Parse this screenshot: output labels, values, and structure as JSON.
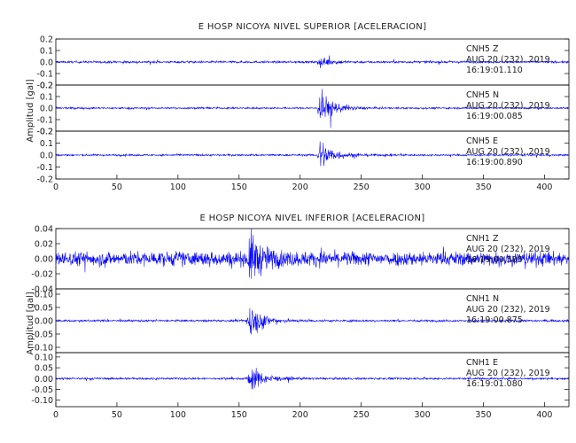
{
  "colors": {
    "trace": "#0000ff",
    "axis": "#000000",
    "text": "#222222"
  },
  "chart_data": [
    {
      "type": "line",
      "title": "E HOSP NICOYA NIVEL SUPERIOR [ACELERACION]",
      "ylabel": "Amplitud [gal]",
      "xlim": [
        0,
        420
      ],
      "x_ticks": [
        "0",
        "50",
        "100",
        "150",
        "200",
        "250",
        "300",
        "350",
        "400"
      ],
      "panels": [
        {
          "channel": "CNH5 Z",
          "date": "AUG 20 (232), 2019",
          "time": "16:19:01.110",
          "ylim": [
            -0.2,
            0.2
          ],
          "y_ticks": [
            "0.2",
            "0.1",
            "0.0",
            "-0.1",
            "-0.2"
          ],
          "noise": 0.012,
          "event_time": 216,
          "event_peak": 0.05
        },
        {
          "channel": "CNH5 N",
          "date": "AUG 20 (232), 2019",
          "time": "16:19:00.085",
          "ylim": [
            -0.2,
            0.2
          ],
          "y_ticks": [
            "0.2",
            "0.1",
            "0.0",
            "-0.1",
            "-0.2"
          ],
          "noise": 0.01,
          "event_time": 216,
          "event_peak": 0.2
        },
        {
          "channel": "CNH5 E",
          "date": "AUG 20 (232), 2019",
          "time": "16:19:00.890",
          "ylim": [
            -0.2,
            0.2
          ],
          "y_ticks": [
            "0.2",
            "0.1",
            "0.0",
            "-0.1",
            "-0.2"
          ],
          "noise": 0.01,
          "event_time": 216,
          "event_peak": 0.18
        }
      ]
    },
    {
      "type": "line",
      "title": "E HOSP NICOYA NIVEL INFERIOR [ACELERACION]",
      "ylabel": "Amplitud [gal]",
      "xlim": [
        0,
        420
      ],
      "x_ticks": [
        "0",
        "50",
        "100",
        "150",
        "200",
        "250",
        "300",
        "350",
        "400"
      ],
      "panels": [
        {
          "channel": "CNH1 Z",
          "date": "AUG 20 (232), 2019",
          "time": "16:19:00.585",
          "ylim": [
            -0.04,
            0.04
          ],
          "y_ticks": [
            "0.04",
            "0.02",
            "0.00",
            "-0.02",
            "-0.04"
          ],
          "noise": 0.012,
          "event_time": 158,
          "event_peak": 0.04
        },
        {
          "channel": "CNH1 N",
          "date": "AUG 20 (232), 2019",
          "time": "16:19:00.875",
          "ylim": [
            -0.12,
            0.12
          ],
          "y_ticks": [
            "0.10",
            "0.05",
            "0.00",
            "-0.05",
            "-0.10"
          ],
          "noise": 0.005,
          "event_time": 158,
          "event_peak": 0.1
        },
        {
          "channel": "CNH1 E",
          "date": "AUG 20 (232), 2019",
          "time": "16:19:01.080",
          "ylim": [
            -0.13,
            0.12
          ],
          "y_ticks": [
            "0.10",
            "0.05",
            "0.00",
            "-0.05",
            "-0.10"
          ],
          "noise": 0.006,
          "event_time": 158,
          "event_peak": 0.09
        }
      ]
    }
  ]
}
